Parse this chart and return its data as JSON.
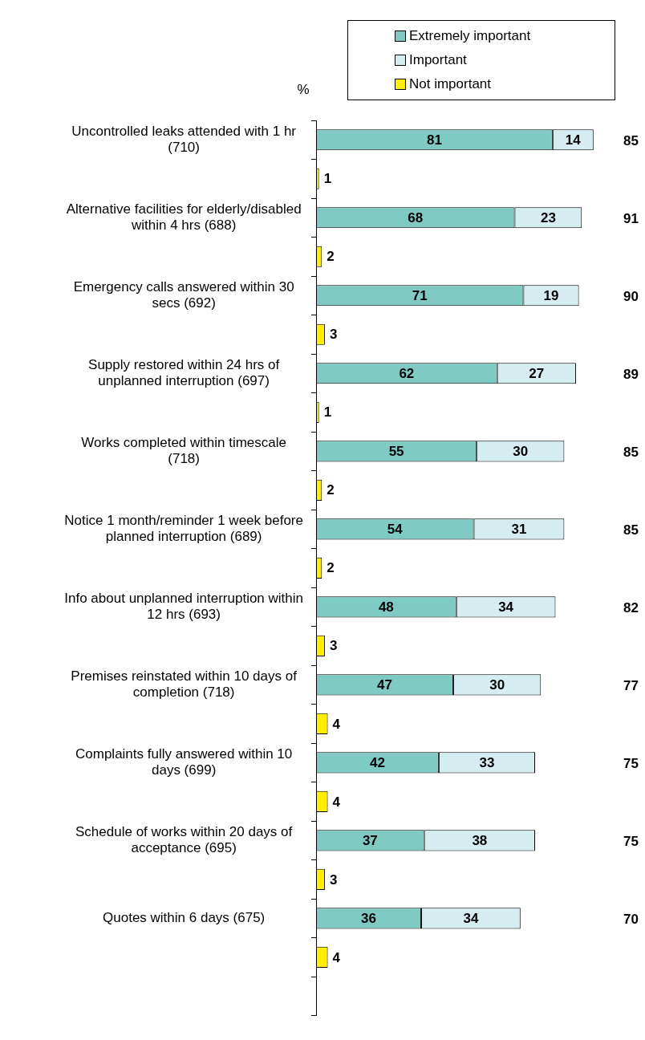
{
  "chart_data": {
    "type": "bar",
    "orientation": "horizontal",
    "stacked": true,
    "data_labels": true,
    "legend": "top right",
    "tick_labels": "y",
    "categories": [
      "Uncontrolled leaks attended with 1 hr (710)",
      null,
      "Alternative facilities for elderly/disabled within 4 hrs (688)",
      null,
      "Emergency calls answered within 30 secs (692)",
      null,
      "Supply restored within 24 hrs of unplanned interruption (697)",
      null,
      "Works completed within timescale (718)",
      null,
      "Notice 1 month/reminder 1 week before planned interruption (689)",
      null,
      "Info about unplanned interruption within 12 hrs (693)",
      null,
      "Premises reinstated within 10 days of completion (718)",
      null,
      "Complaints fully answered within 10 days (699)",
      null,
      "Schedule of works within 20 days of acceptance (695)",
      null,
      "Quotes within 6 days (675)",
      null,
      null
    ],
    "series": [
      {
        "name": "Extremely important",
        "color": "#7fcac3",
        "values": [
          81,
          null,
          68,
          null,
          71,
          null,
          62,
          null,
          55,
          null,
          54,
          null,
          48,
          null,
          47,
          null,
          42,
          null,
          37,
          null,
          36,
          null,
          null
        ]
      },
      {
        "name": "Important",
        "color": "#d5ecf0",
        "values": [
          14,
          null,
          23,
          null,
          19,
          null,
          27,
          null,
          30,
          null,
          31,
          null,
          34,
          null,
          30,
          null,
          33,
          null,
          38,
          null,
          34,
          null,
          null
        ]
      },
      {
        "name": "Not important",
        "color": "#fff000",
        "values": [
          null,
          1,
          null,
          2,
          null,
          3,
          null,
          1,
          null,
          2,
          null,
          2,
          null,
          3,
          null,
          4,
          null,
          4,
          null,
          3,
          null,
          4,
          null
        ]
      }
    ],
    "annotations": [
      "%",
      "85",
      "91",
      "90",
      "89",
      "85",
      "85",
      "82",
      "77",
      "75",
      "75",
      "70"
    ]
  }
}
